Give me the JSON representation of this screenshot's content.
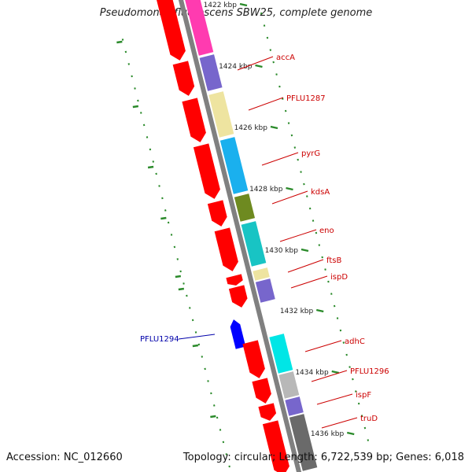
{
  "title": "Pseudomonas fluorescens SBW25, complete genome",
  "accession": "Accession: NC_012660",
  "topology": "Topology: circular; Length: 6,722,539 bp; Genes: 6,018",
  "colors": {
    "backbone": "#808080",
    "forward_gene": "#ff0000",
    "reverse_gene": "#0000ff",
    "tick": "#2a8a2a",
    "label_forward": "#cc0000",
    "label_reverse": "#0000aa"
  },
  "scale_labels": [
    "1422 kbp",
    "1424 kbp",
    "1426 kbp",
    "1428 kbp",
    "1430 kbp",
    "1432 kbp",
    "1434 kbp",
    "1436 kbp"
  ],
  "genes": [
    {
      "label": "accA",
      "color": "#7766cc"
    },
    {
      "label": "PFLU1287",
      "color": "#eee4a0"
    },
    {
      "label": "pyrG",
      "color": "#1ab0ee"
    },
    {
      "label": "kdsA",
      "color": "#6e8a20"
    },
    {
      "label": "eno",
      "color": "#18c4c4"
    },
    {
      "label": "ftsB",
      "color": "#eee4a0"
    },
    {
      "label": "ispD",
      "color": "#7766cc"
    },
    {
      "label": "PFLU1294",
      "color": "#0000ff"
    },
    {
      "label": "adhC",
      "color": "#00e6e6"
    },
    {
      "label": "PFLU1296",
      "color": "#b8b8b8"
    },
    {
      "label": "ispF",
      "color": "#7766cc"
    },
    {
      "label": "truD",
      "color": "#6a6a6a"
    }
  ]
}
